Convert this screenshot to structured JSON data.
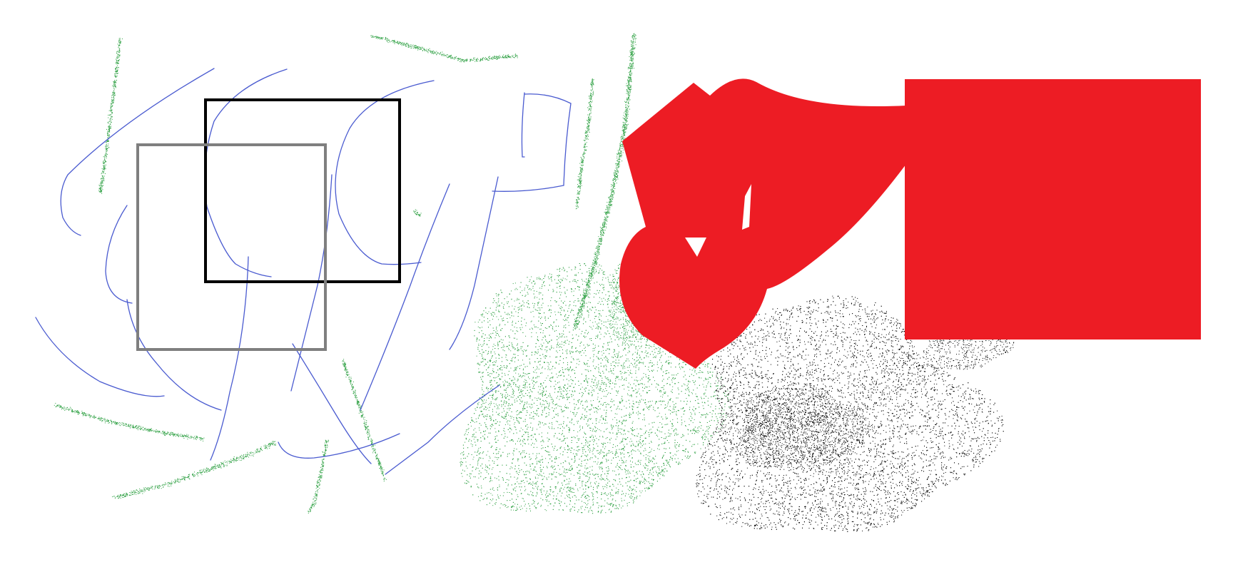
{
  "canvas": {
    "background": "#ffffff"
  },
  "colors": {
    "pen": "#4a5bd0",
    "spray_green": "#2ea043",
    "spray_black": "#000000",
    "fill_red": "#ed1c24",
    "rect_black": "#000000",
    "rect_gray": "#7f7f7f"
  }
}
